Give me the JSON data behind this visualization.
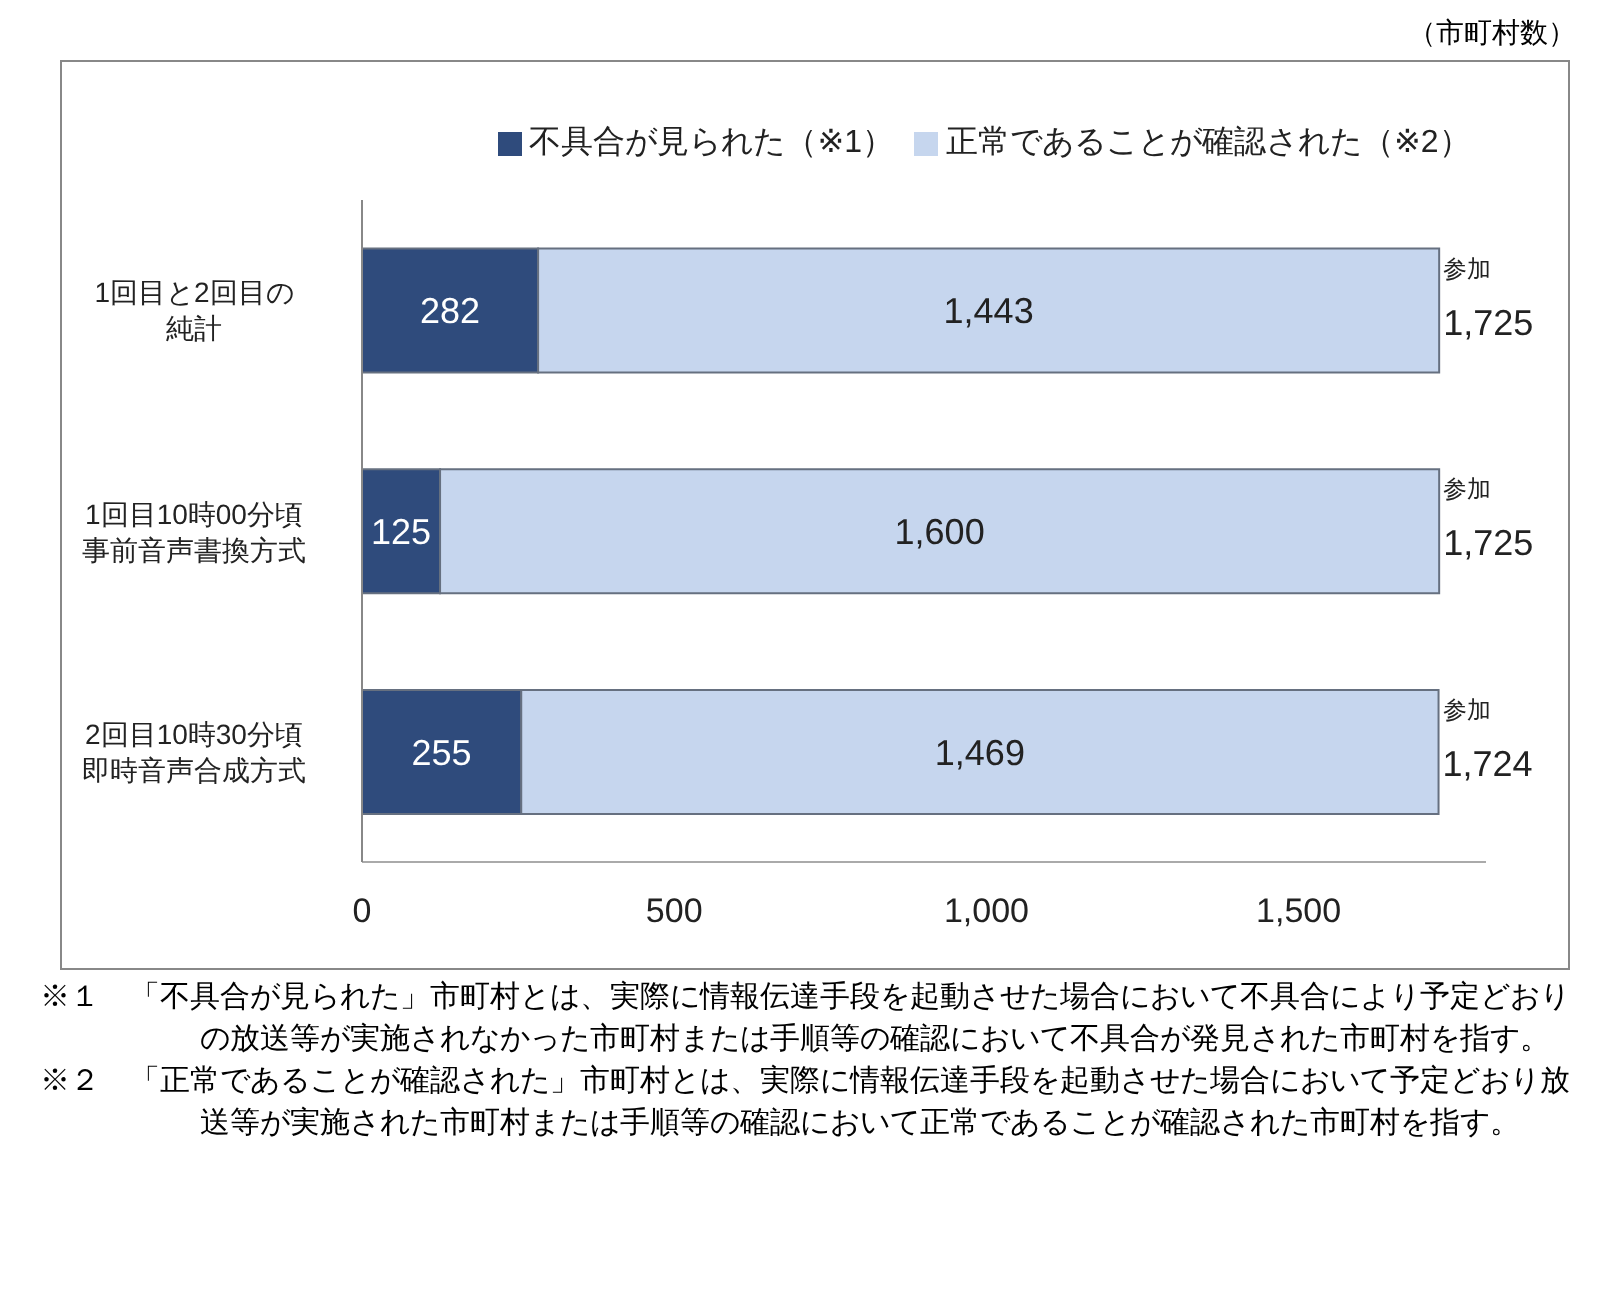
{
  "chart_data": {
    "type": "bar",
    "orientation": "horizontal",
    "stacked": true,
    "categories": [
      "1回目と2回目の純計",
      "1回目10時00分頃事前音声書換方式",
      "2回目10時30分頃即時音声合成方式"
    ],
    "series": [
      {
        "name": "不具合が見られた（※1）",
        "color": "#2f4b7c",
        "values": [
          282,
          125,
          255
        ],
        "value_labels": [
          "282",
          "125",
          "255"
        ]
      },
      {
        "name": "正常であることが確認された（※2）",
        "color": "#c6d6ee",
        "values": [
          1443,
          1600,
          1469
        ],
        "value_labels": [
          "1,443",
          "1,600",
          "1,469"
        ]
      }
    ],
    "totals": [
      "$^{参加}$1,725",
      "$^{参加}$1,725",
      "$^{参加}$1,724"
    ],
    "legend": "top",
    "grid": false,
    "xlim": [
      0,
      1800
    ],
    "xticks": [
      0,
      500,
      {
        "value": 1000,
        "label": "1,000"
      },
      {
        "value": 1500,
        "label": "1,500"
      }
    ],
    "annotations": [
      "（市町村数）",
      "※１　「不具合が見られた」市町村とは、実際に情報伝達手段を起動させた場合において不具合により予定どおりの放送等が実施されなかった市町村または手順等の確認において不具合が発見された市町村を指す。",
      "※２　「正常であることが確認された」市町村とは、実際に情報伝達手段を起動させた場合において予定どおり放送等が実施された市町村または手順等の確認において正常であることが確認された市町村を指す。"
    ]
  }
}
